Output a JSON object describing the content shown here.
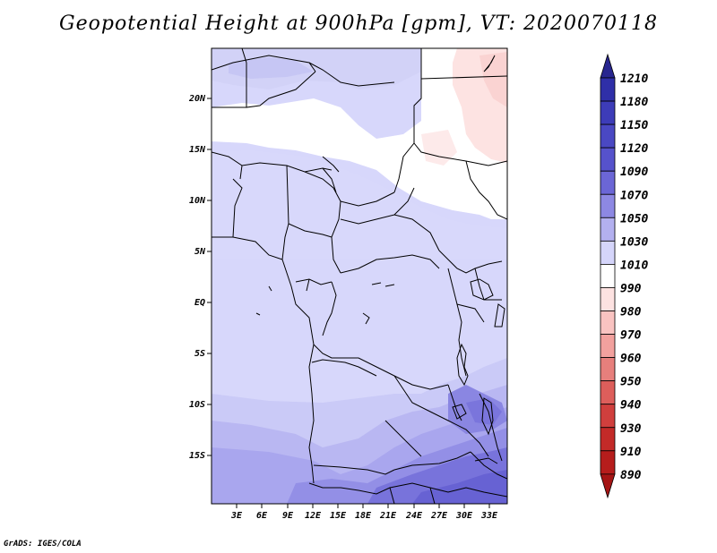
{
  "title": "Geopotential Height at 900hPa [gpm], VT: 2020070118",
  "credit": "GrADS: IGES/COLA",
  "map": {
    "lat_labels": [
      "20N",
      "15N",
      "10N",
      "5N",
      "EQ",
      "5S",
      "10S",
      "15S"
    ],
    "lon_labels": [
      "3E",
      "6E",
      "9E",
      "12E",
      "15E",
      "18E",
      "21E",
      "24E",
      "27E",
      "30E",
      "33E"
    ]
  },
  "colorbar": {
    "levels": [
      "1210",
      "1180",
      "1150",
      "1120",
      "1090",
      "1070",
      "1050",
      "1030",
      "1010",
      "990",
      "980",
      "970",
      "960",
      "950",
      "940",
      "930",
      "910",
      "890"
    ],
    "colors": [
      "#28268f",
      "#2f2fa8",
      "#3d3cb8",
      "#4a48c3",
      "#5652cc",
      "#6b66d6",
      "#8d88e3",
      "#b3b0ef",
      "#d5d5fa",
      "#ffffff",
      "#fde2e1",
      "#f9c3c1",
      "#f2a19e",
      "#e77f7c",
      "#dd5e5b",
      "#d03f3d",
      "#c32a28",
      "#b61d1c",
      "#a51515"
    ]
  }
}
